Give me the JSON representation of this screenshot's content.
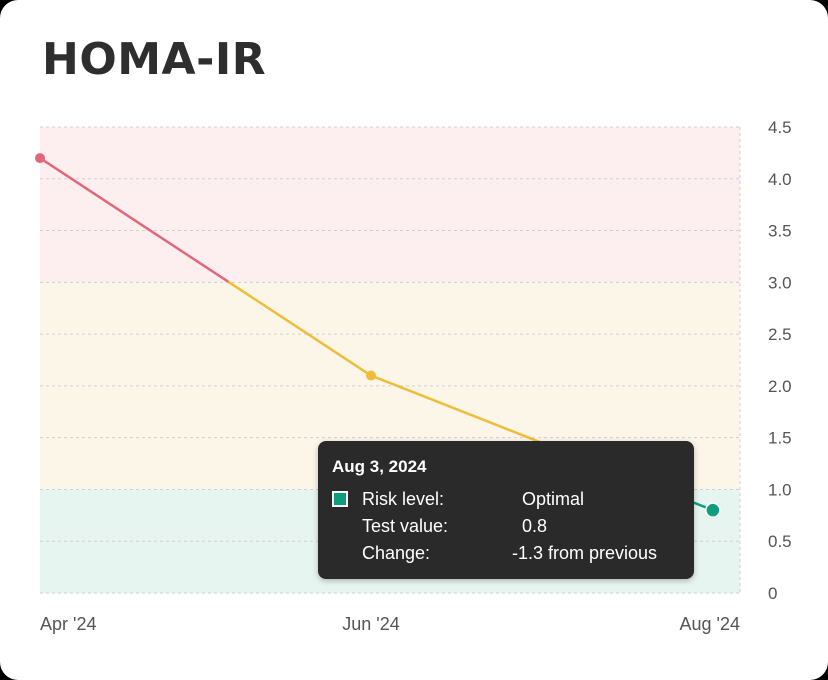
{
  "title": "HOMA-IR",
  "colors": {
    "high_band": "#fdeef0",
    "mid_band": "#fcf6e8",
    "low_band": "#e7f5f1",
    "high_line": "#e0687a",
    "mid_line": "#eebd3a",
    "optimal": "#0e9e7d"
  },
  "tooltip": {
    "date": "Aug 3, 2024",
    "risk_label": "Risk level:",
    "risk_value": "Optimal",
    "test_label": "Test value:",
    "test_value": "0.8",
    "change_label": "Change:",
    "change_value": "-1.3 from previous"
  },
  "chart_data": {
    "type": "line",
    "title": "HOMA-IR",
    "xlabel": "",
    "ylabel": "",
    "x_tick_labels": [
      "Apr '24",
      "Jun '24",
      "Aug '24"
    ],
    "points": [
      {
        "x": "2024-04-01",
        "y": 4.2
      },
      {
        "x": "2024-06-01",
        "y": 2.1
      },
      {
        "x": "2024-08-03",
        "y": 0.8
      }
    ],
    "ylim": [
      0,
      4.5
    ],
    "y_ticks": [
      "0",
      "0.5",
      "1.0",
      "1.5",
      "2.0",
      "2.5",
      "3.0",
      "3.5",
      "4.0",
      "4.5"
    ],
    "y_axis_position": "right",
    "grid": true,
    "bands": [
      {
        "from": 0,
        "to": 1.0,
        "level": "optimal"
      },
      {
        "from": 1.0,
        "to": 3.0,
        "level": "moderate"
      },
      {
        "from": 3.0,
        "to": 4.5,
        "level": "high"
      }
    ],
    "highlighted_point": 2
  }
}
